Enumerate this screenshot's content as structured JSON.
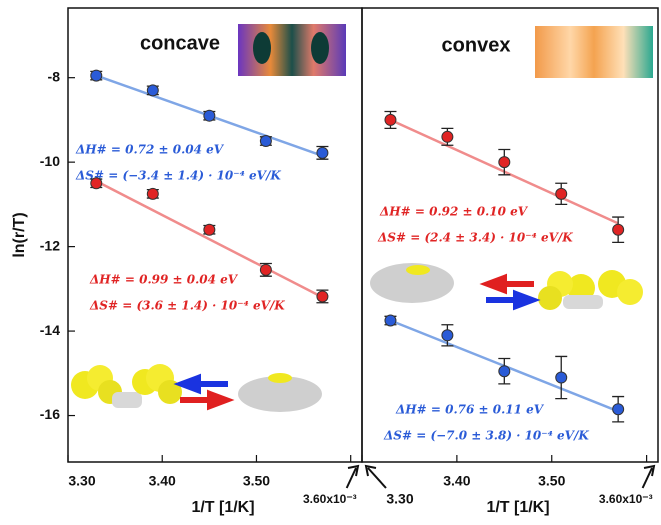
{
  "chart_data": [
    {
      "type": "scatter",
      "title": "concave",
      "x_label": "1/T [1/K]",
      "y_label": "ln(r/T)",
      "x": [
        3.33,
        3.39,
        3.45,
        3.51,
        3.57
      ],
      "xlim": [
        3.3,
        3.612
      ],
      "ylim": [
        -17.1,
        -6.35
      ],
      "xticks": [
        {
          "value": 3.3,
          "label": "3.30"
        },
        {
          "value": 3.4,
          "label": "3.40"
        },
        {
          "value": 3.5,
          "label": "3.50"
        },
        {
          "value": 3.6,
          "label": "3.60x10⁻³"
        }
      ],
      "yticks": [
        -8,
        -10,
        -12,
        -14,
        -16
      ],
      "series": [
        {
          "color": "#2a5bd7",
          "values": [
            -7.95,
            -8.3,
            -8.9,
            -9.5,
            -9.78
          ],
          "errors": [
            0.1,
            0.1,
            0.1,
            0.1,
            0.15
          ],
          "fit": [
            -7.95,
            -9.85
          ],
          "fit_color": "#7fa6e6",
          "annotations": [
            "ΔH# = 0.72 ± 0.04 eV",
            "ΔS# = (−3.4 ± 1.4) · 10⁻⁴ eV/K"
          ]
        },
        {
          "color": "#e02424",
          "values": [
            -10.5,
            -10.75,
            -11.6,
            -12.55,
            -13.18
          ],
          "errors": [
            0.1,
            0.1,
            0.1,
            0.15,
            0.15
          ],
          "fit": [
            -10.45,
            -13.2
          ],
          "fit_color": "#f08c8c",
          "annotations": [
            "ΔH# = 0.99 ± 0.04 eV",
            "ΔS# = (3.6 ± 1.4) · 10⁻⁴ eV/K"
          ]
        }
      ]
    },
    {
      "type": "scatter",
      "title": "convex",
      "x_label": "1/T [1/K]",
      "x": [
        3.33,
        3.39,
        3.45,
        3.51,
        3.57
      ],
      "xlim": [
        3.3,
        3.612
      ],
      "ylim": [
        -17.1,
        -6.35
      ],
      "xticks": [
        {
          "value": 3.3,
          "label": "3.30"
        },
        {
          "value": 3.4,
          "label": "3.40"
        },
        {
          "value": 3.5,
          "label": "3.50"
        },
        {
          "value": 3.6,
          "label": "3.60x10⁻³"
        }
      ],
      "series": [
        {
          "color": "#e02424",
          "values": [
            -9.0,
            -9.4,
            -10.0,
            -10.75,
            -11.6
          ],
          "errors": [
            0.2,
            0.2,
            0.3,
            0.25,
            0.3
          ],
          "fit": [
            -9.0,
            -11.45
          ],
          "fit_color": "#f08c8c",
          "annotations": [
            "ΔH# = 0.92 ± 0.10 eV",
            "ΔS# = (2.4 ± 3.4) · 10⁻⁴ eV/K"
          ]
        },
        {
          "color": "#2a5bd7",
          "values": [
            -13.75,
            -14.1,
            -14.95,
            -15.1,
            -15.85
          ],
          "errors": [
            0.1,
            0.25,
            0.3,
            0.5,
            0.3
          ],
          "fit": [
            -13.75,
            -15.9
          ],
          "fit_color": "#7fa6e6",
          "annotations": [
            "ΔH# = 0.76 ± 0.11 eV",
            "ΔS# = (−7.0 ± 3.8) · 10⁻⁴ eV/K"
          ]
        }
      ]
    }
  ]
}
